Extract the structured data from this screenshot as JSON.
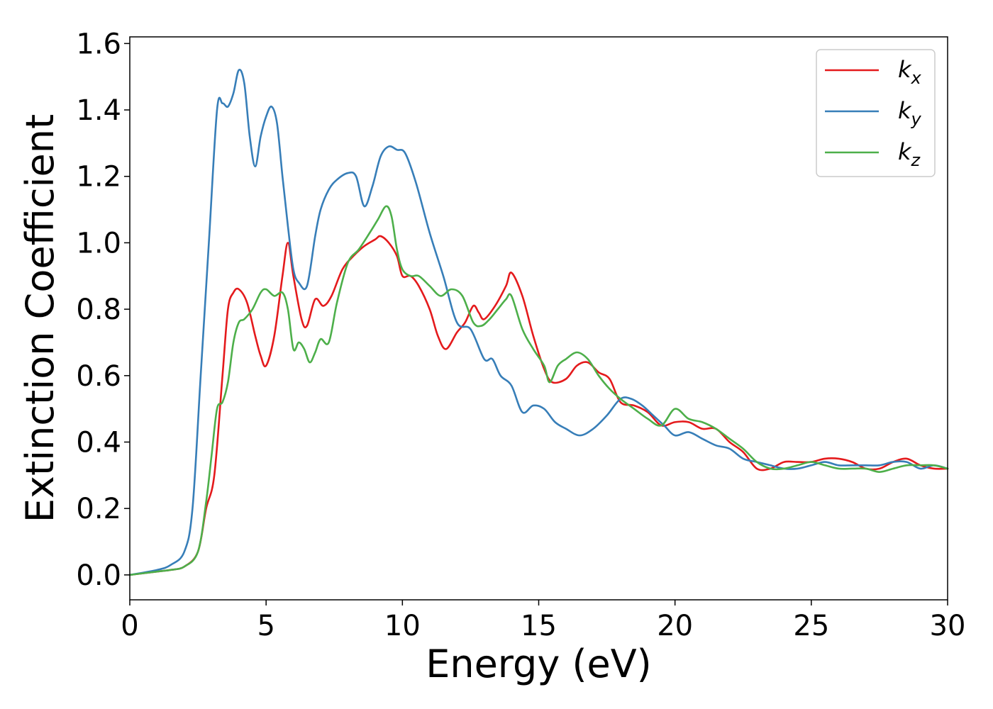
{
  "chart_data": {
    "type": "line",
    "title": "",
    "xlabel": "Energy (eV)",
    "ylabel": "Extinction Coefficient",
    "xlim": [
      0,
      30
    ],
    "ylim": [
      -0.075,
      1.62
    ],
    "xticks": [
      0,
      5,
      10,
      15,
      20,
      25,
      30
    ],
    "xtick_labels": [
      "0",
      "5",
      "10",
      "15",
      "20",
      "25",
      "30"
    ],
    "yticks": [
      0.0,
      0.2,
      0.4,
      0.6,
      0.8,
      1.0,
      1.2,
      1.4,
      1.6
    ],
    "ytick_labels": [
      "0.0",
      "0.2",
      "0.4",
      "0.6",
      "0.8",
      "1.0",
      "1.2",
      "1.4",
      "1.6"
    ],
    "grid": false,
    "legend": {
      "placement": "top-right"
    },
    "series": [
      {
        "name": "k",
        "subscript": "x",
        "color": "#e41a1c",
        "x": [
          0,
          1,
          1.5,
          2,
          2.5,
          2.8,
          3.1,
          3.4,
          3.6,
          3.8,
          4.0,
          4.3,
          4.6,
          4.8,
          5.0,
          5.3,
          5.6,
          5.8,
          6.0,
          6.3,
          6.5,
          6.8,
          7.1,
          7.4,
          7.8,
          8.2,
          8.6,
          9.0,
          9.2,
          9.5,
          9.8,
          10.0,
          10.3,
          10.6,
          11.0,
          11.3,
          11.6,
          12.0,
          12.3,
          12.6,
          12.8,
          13.0,
          13.4,
          13.8,
          14.0,
          14.4,
          14.8,
          15.2,
          15.5,
          16.0,
          16.4,
          16.8,
          17.2,
          17.6,
          18.0,
          18.5,
          19.0,
          19.5,
          20.0,
          20.5,
          21.0,
          21.5,
          22.0,
          22.5,
          23.0,
          23.5,
          24.0,
          24.5,
          25.0,
          25.5,
          26.0,
          26.5,
          27.0,
          27.5,
          28.0,
          28.5,
          29.0,
          29.5,
          30.0
        ],
        "y": [
          0.0,
          0.01,
          0.015,
          0.025,
          0.07,
          0.2,
          0.3,
          0.6,
          0.8,
          0.85,
          0.86,
          0.82,
          0.72,
          0.66,
          0.63,
          0.72,
          0.9,
          1.0,
          0.9,
          0.77,
          0.75,
          0.83,
          0.81,
          0.84,
          0.92,
          0.96,
          0.99,
          1.01,
          1.02,
          1.0,
          0.96,
          0.9,
          0.9,
          0.87,
          0.8,
          0.72,
          0.68,
          0.73,
          0.76,
          0.81,
          0.79,
          0.77,
          0.81,
          0.87,
          0.91,
          0.84,
          0.72,
          0.62,
          0.58,
          0.59,
          0.63,
          0.64,
          0.61,
          0.59,
          0.52,
          0.51,
          0.49,
          0.45,
          0.46,
          0.46,
          0.44,
          0.44,
          0.4,
          0.37,
          0.32,
          0.32,
          0.34,
          0.34,
          0.34,
          0.35,
          0.35,
          0.34,
          0.32,
          0.32,
          0.34,
          0.35,
          0.33,
          0.32,
          0.32
        ]
      },
      {
        "name": "k",
        "subscript": "y",
        "color": "#377eb8",
        "x": [
          0,
          1,
          1.5,
          2,
          2.3,
          2.6,
          2.9,
          3.2,
          3.4,
          3.6,
          3.8,
          4.0,
          4.2,
          4.4,
          4.6,
          4.8,
          5.0,
          5.2,
          5.4,
          5.6,
          5.8,
          6.0,
          6.2,
          6.5,
          6.8,
          7.0,
          7.3,
          7.6,
          8.0,
          8.3,
          8.6,
          8.9,
          9.2,
          9.5,
          9.8,
          10.1,
          10.5,
          11.0,
          11.5,
          12.0,
          12.5,
          13.0,
          13.3,
          13.6,
          14.0,
          14.4,
          14.8,
          15.2,
          15.6,
          16.0,
          16.5,
          17.0,
          17.5,
          18.0,
          18.4,
          18.8,
          19.2,
          19.6,
          20.0,
          20.5,
          21.0,
          21.5,
          22.0,
          22.5,
          23.0,
          23.5,
          24.0,
          24.5,
          25.0,
          25.5,
          26.0,
          26.5,
          27.0,
          27.5,
          28.0,
          28.5,
          29.0,
          29.5,
          30.0
        ],
        "y": [
          0.0,
          0.015,
          0.03,
          0.07,
          0.2,
          0.6,
          1.0,
          1.4,
          1.42,
          1.41,
          1.45,
          1.52,
          1.48,
          1.32,
          1.23,
          1.32,
          1.38,
          1.41,
          1.36,
          1.2,
          1.05,
          0.92,
          0.88,
          0.87,
          1.02,
          1.1,
          1.16,
          1.19,
          1.21,
          1.2,
          1.11,
          1.17,
          1.26,
          1.29,
          1.28,
          1.27,
          1.18,
          1.03,
          0.9,
          0.76,
          0.74,
          0.65,
          0.65,
          0.6,
          0.57,
          0.49,
          0.51,
          0.5,
          0.46,
          0.44,
          0.42,
          0.44,
          0.48,
          0.53,
          0.53,
          0.51,
          0.48,
          0.45,
          0.42,
          0.43,
          0.41,
          0.39,
          0.38,
          0.35,
          0.34,
          0.33,
          0.32,
          0.32,
          0.33,
          0.34,
          0.33,
          0.33,
          0.33,
          0.33,
          0.34,
          0.34,
          0.32,
          0.33,
          0.32
        ]
      },
      {
        "name": "k",
        "subscript": "z",
        "color": "#4daf4a",
        "x": [
          0,
          1,
          1.5,
          2,
          2.5,
          2.8,
          3.0,
          3.2,
          3.4,
          3.6,
          3.8,
          4.0,
          4.2,
          4.5,
          4.8,
          5.0,
          5.3,
          5.6,
          5.8,
          6.0,
          6.2,
          6.4,
          6.6,
          6.8,
          7.0,
          7.3,
          7.6,
          8.0,
          8.4,
          8.8,
          9.1,
          9.4,
          9.6,
          9.8,
          10.0,
          10.3,
          10.6,
          11.0,
          11.4,
          11.8,
          12.2,
          12.6,
          12.9,
          13.2,
          13.5,
          13.8,
          14.0,
          14.4,
          14.8,
          15.2,
          15.4,
          15.7,
          16.0,
          16.4,
          16.8,
          17.2,
          17.6,
          18.0,
          18.5,
          19.0,
          19.5,
          20.0,
          20.5,
          21.0,
          21.5,
          22.0,
          22.5,
          23.0,
          23.5,
          24.0,
          24.5,
          25.0,
          25.5,
          26.0,
          26.5,
          27.0,
          27.5,
          28.0,
          28.5,
          29.0,
          29.5,
          30.0
        ],
        "y": [
          0.0,
          0.01,
          0.015,
          0.025,
          0.07,
          0.22,
          0.36,
          0.5,
          0.52,
          0.58,
          0.7,
          0.76,
          0.77,
          0.8,
          0.85,
          0.86,
          0.84,
          0.85,
          0.8,
          0.68,
          0.7,
          0.68,
          0.64,
          0.67,
          0.71,
          0.7,
          0.82,
          0.94,
          0.98,
          1.03,
          1.07,
          1.11,
          1.08,
          0.98,
          0.92,
          0.9,
          0.9,
          0.87,
          0.84,
          0.86,
          0.84,
          0.76,
          0.75,
          0.77,
          0.8,
          0.83,
          0.84,
          0.74,
          0.68,
          0.63,
          0.58,
          0.63,
          0.65,
          0.67,
          0.65,
          0.6,
          0.56,
          0.53,
          0.5,
          0.47,
          0.45,
          0.5,
          0.47,
          0.46,
          0.44,
          0.41,
          0.38,
          0.34,
          0.32,
          0.32,
          0.33,
          0.34,
          0.33,
          0.32,
          0.32,
          0.32,
          0.31,
          0.32,
          0.33,
          0.33,
          0.33,
          0.32
        ]
      }
    ]
  }
}
